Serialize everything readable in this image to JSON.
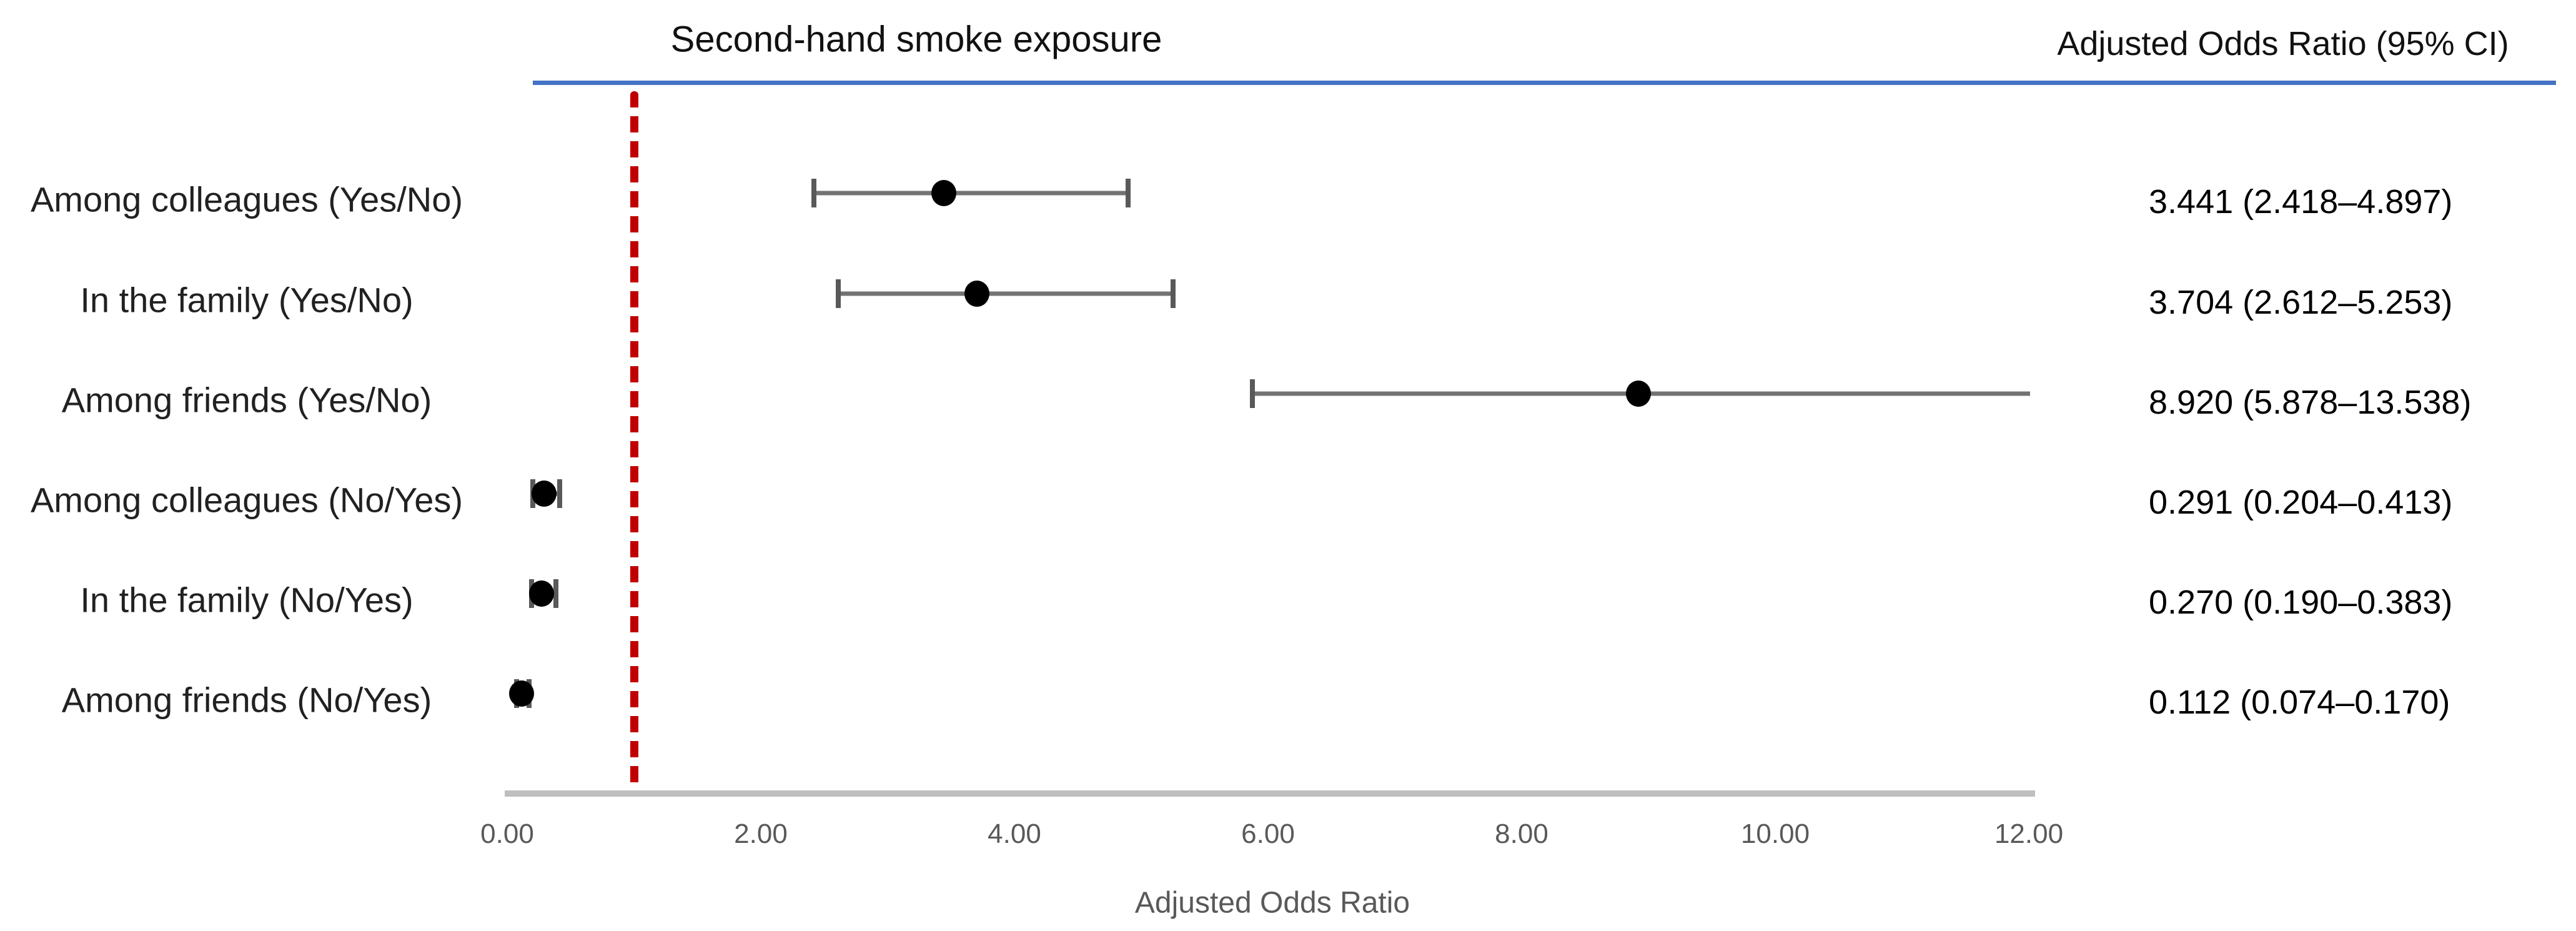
{
  "title": "Second-hand smoke exposure",
  "right_column_header": "Adjusted Odds Ratio (95% CI)",
  "xlabel": "Adjusted Odds Ratio",
  "colors": {
    "reference_line": "#C00000",
    "header_rule": "#4472C4",
    "axis_line": "#BFBFBF",
    "whisker": "#737373",
    "whisker_cap": "#595959",
    "marker": "#000000",
    "tick_text": "#595959",
    "axis_label_text": "#595959",
    "label_text": "#212121",
    "value_text": "#000000"
  },
  "chart_data": {
    "type": "scatter",
    "variant": "forest-plot",
    "title": "Second-hand smoke exposure",
    "right_column_header": "Adjusted Odds Ratio (95% CI)",
    "xlabel": "Adjusted Odds Ratio",
    "xlim": [
      0,
      12
    ],
    "x_ticks": [
      0,
      2,
      4,
      6,
      8,
      10,
      12
    ],
    "x_tick_labels": [
      "0.00",
      "2.00",
      "4.00",
      "6.00",
      "8.00",
      "10.00",
      "12.00"
    ],
    "reference_line_x": 1.0,
    "grid": false,
    "legend": "none",
    "rows": [
      {
        "label": "Among colleagues (Yes/No)",
        "or": 3.441,
        "ci_low": 2.418,
        "ci_high": 4.897,
        "value_text": "3.441 (2.418–4.897)"
      },
      {
        "label": "In the family (Yes/No)",
        "or": 3.704,
        "ci_low": 2.612,
        "ci_high": 5.253,
        "value_text": "3.704 (2.612–5.253)"
      },
      {
        "label": "Among friends (Yes/No)",
        "or": 8.92,
        "ci_low": 5.878,
        "ci_high": 13.538,
        "value_text": "8.920 (5.878–13.538)"
      },
      {
        "label": "Among colleagues (No/Yes)",
        "or": 0.291,
        "ci_low": 0.204,
        "ci_high": 0.413,
        "value_text": "0.291 (0.204–0.413)"
      },
      {
        "label": "In the family (No/Yes)",
        "or": 0.27,
        "ci_low": 0.19,
        "ci_high": 0.383,
        "value_text": "0.270 (0.190–0.383)"
      },
      {
        "label": "Among friends (No/Yes)",
        "or": 0.112,
        "ci_low": 0.074,
        "ci_high": 0.17,
        "value_text": "0.112 (0.074–0.170)"
      }
    ]
  }
}
